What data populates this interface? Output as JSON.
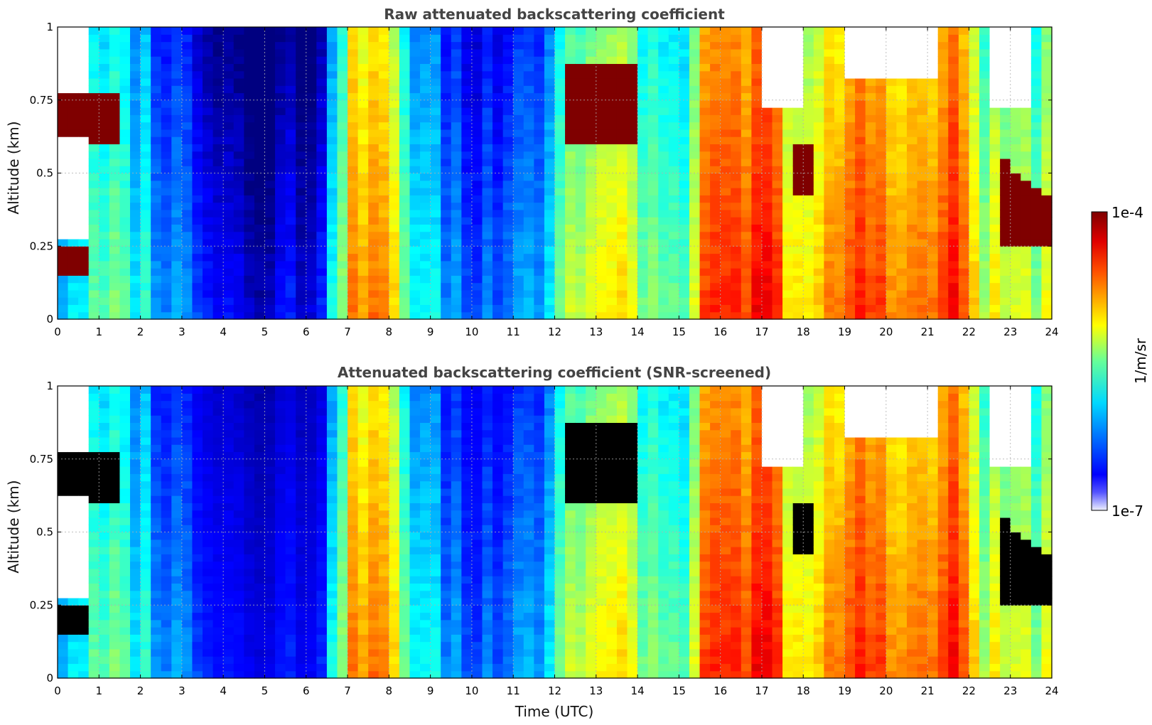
{
  "chart_data": [
    {
      "type": "heatmap",
      "title": "Raw attenuated backscattering coefficient",
      "xlabel": "",
      "ylabel": "Altitude (km)",
      "xlim": [
        0,
        24
      ],
      "ylim": [
        0,
        1
      ],
      "xticks": [
        0,
        1,
        2,
        3,
        4,
        5,
        6,
        7,
        8,
        9,
        10,
        11,
        12,
        13,
        14,
        15,
        16,
        17,
        18,
        19,
        20,
        21,
        22,
        23,
        24
      ],
      "yticks": [
        0,
        0.25,
        0.5,
        0.75,
        1
      ],
      "ytick_labels": [
        "0",
        "0.25",
        "0.5",
        "0.75",
        "1"
      ],
      "grid": true,
      "colormap": "jet",
      "color_scale": "log",
      "saturated_color": "#7f0000",
      "missing_color": "#ffffff"
    },
    {
      "type": "heatmap",
      "title": "Attenuated backscattering coefficient (SNR-screened)",
      "xlabel": "Time (UTC)",
      "ylabel": "Altitude (km)",
      "xlim": [
        0,
        24
      ],
      "ylim": [
        0,
        1
      ],
      "xticks": [
        0,
        1,
        2,
        3,
        4,
        5,
        6,
        7,
        8,
        9,
        10,
        11,
        12,
        13,
        14,
        15,
        16,
        17,
        18,
        19,
        20,
        21,
        22,
        23,
        24
      ],
      "yticks": [
        0,
        0.25,
        0.5,
        0.75,
        1
      ],
      "ytick_labels": [
        "0",
        "0.25",
        "0.5",
        "0.75",
        "1"
      ],
      "grid": true,
      "colormap": "jet",
      "color_scale": "log",
      "saturated_color": "#000000",
      "missing_color": "#ffffff"
    }
  ],
  "colorbar": {
    "label": "1/m/sr",
    "max_label": "1e-4",
    "min_label": "1e-7",
    "min": 1e-07,
    "max": 0.0001
  }
}
